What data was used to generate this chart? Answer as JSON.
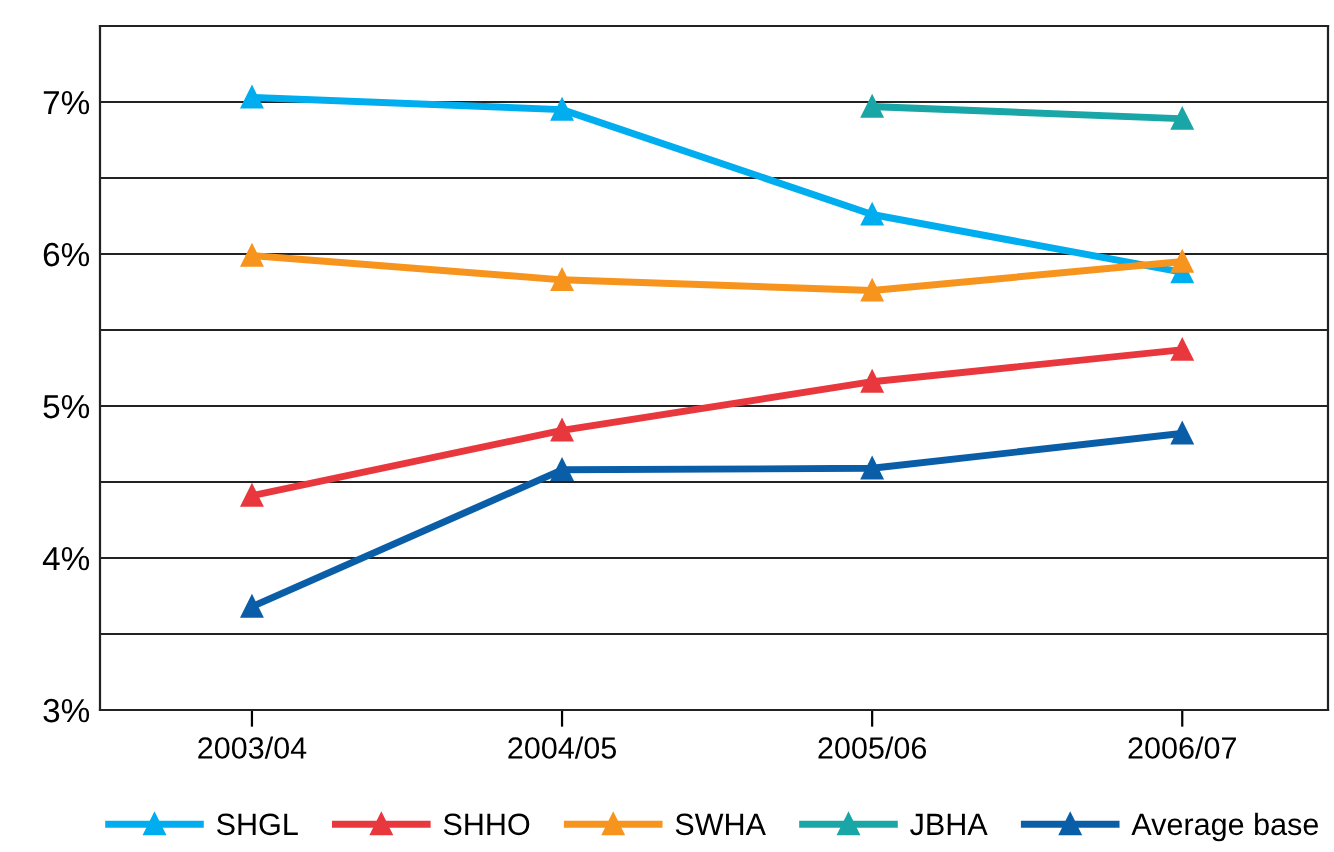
{
  "chart_data": {
    "type": "line",
    "categories": [
      "2003/04",
      "2004/05",
      "2005/06",
      "2006/07"
    ],
    "series": [
      {
        "name": "SHGL",
        "color": "#00aeef",
        "values": [
          7.03,
          6.95,
          6.26,
          5.88
        ]
      },
      {
        "name": "SHHO",
        "color": "#e8383d",
        "values": [
          4.41,
          4.84,
          5.16,
          5.37
        ]
      },
      {
        "name": "SWHA",
        "color": "#f7941d",
        "values": [
          5.99,
          5.83,
          5.76,
          5.95
        ]
      },
      {
        "name": "JBHA",
        "color": "#1aa6a6",
        "values": [
          null,
          null,
          6.97,
          6.89
        ]
      },
      {
        "name": "Average base",
        "color": "#0a5ea8",
        "values": [
          3.68,
          4.58,
          4.59,
          4.82
        ]
      }
    ],
    "ylim": [
      3,
      7.5
    ],
    "yticks": [
      {
        "value": 3,
        "label": "3%"
      },
      {
        "value": 3.5,
        "label": null
      },
      {
        "value": 4,
        "label": "4%"
      },
      {
        "value": 4.5,
        "label": null
      },
      {
        "value": 5,
        "label": "5%"
      },
      {
        "value": 5.5,
        "label": null
      },
      {
        "value": 6,
        "label": "6%"
      },
      {
        "value": 6.5,
        "label": null
      },
      {
        "value": 7,
        "label": "7%"
      },
      {
        "value": 7.5,
        "label": null
      }
    ],
    "grid": "y",
    "legend": "bottom",
    "marker": "triangle",
    "line_style": "solid"
  }
}
